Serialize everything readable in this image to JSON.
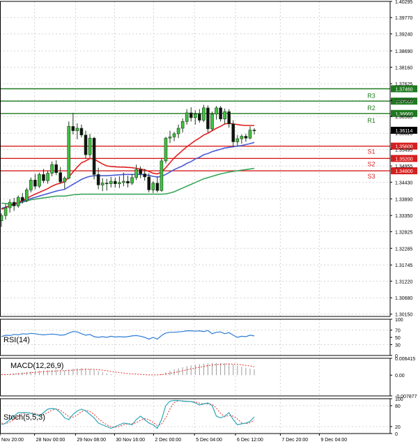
{
  "chart_data": [
    {
      "type": "candlestick",
      "title": "",
      "y_range": [
        1.30075,
        1.40295
      ],
      "y_ticks": [
        "1.40295",
        "1.39770",
        "1.39240",
        "1.38690",
        "1.38160",
        "1.37625",
        "1.37080",
        "1.36560",
        "1.36020",
        "1.35495",
        "1.34955",
        "1.34430",
        "1.33890",
        "1.33350",
        "1.32825",
        "1.32285",
        "1.31745",
        "1.31220",
        "1.30680",
        "1.30150"
      ],
      "x_labels": [
        "Nov 20:00",
        "28 Nov 00:00",
        "29 Nov 08:00",
        "30 Nov 16:00",
        "2 Dec 00:00",
        "5 Dec 04:00",
        "6 Dec 12:00",
        "7 Dec 20:00",
        "9 Dec 04:00"
      ],
      "x_label_positions": [
        0.0,
        0.085,
        0.19,
        0.29,
        0.39,
        0.495,
        0.6,
        0.715,
        0.815
      ],
      "current_price": "1.36114",
      "current_value": 1.36114,
      "levels": [
        {
          "label": "R3",
          "price": "1.37460",
          "value": 1.3746,
          "kind": "resistance"
        },
        {
          "label": "R2",
          "price": "1.37060",
          "value": 1.3706,
          "kind": "resistance"
        },
        {
          "label": "R1",
          "price": "1.36660",
          "value": 1.3666,
          "kind": "resistance"
        },
        {
          "label": "S1",
          "price": "1.35600",
          "value": 1.356,
          "kind": "support"
        },
        {
          "label": "S2",
          "price": "1.35200",
          "value": 1.352,
          "kind": "support"
        },
        {
          "label": "S3",
          "price": "1.34800",
          "value": 1.348,
          "kind": "support"
        }
      ],
      "candles": [
        [
          1.3318,
          1.3342,
          1.3298,
          1.3335
        ],
        [
          1.3335,
          1.3372,
          1.3322,
          1.336
        ],
        [
          1.336,
          1.3388,
          1.3344,
          1.3378
        ],
        [
          1.3378,
          1.3392,
          1.335,
          1.3366
        ],
        [
          1.3366,
          1.34,
          1.336,
          1.3394
        ],
        [
          1.3394,
          1.3408,
          1.3374,
          1.3383
        ],
        [
          1.3383,
          1.3425,
          1.3378,
          1.3418
        ],
        [
          1.3418,
          1.3458,
          1.341,
          1.345
        ],
        [
          1.345,
          1.347,
          1.342,
          1.343
        ],
        [
          1.343,
          1.3474,
          1.3424,
          1.3468
        ],
        [
          1.3468,
          1.3486,
          1.344,
          1.3448
        ],
        [
          1.3448,
          1.348,
          1.3438,
          1.3472
        ],
        [
          1.3472,
          1.351,
          1.3462,
          1.35
        ],
        [
          1.35,
          1.3514,
          1.3466,
          1.3474
        ],
        [
          1.3474,
          1.3492,
          1.3438,
          1.3444
        ],
        [
          1.3444,
          1.3462,
          1.3422,
          1.3456
        ],
        [
          1.3456,
          1.364,
          1.3452,
          1.3624
        ],
        [
          1.3624,
          1.3668,
          1.3598,
          1.361
        ],
        [
          1.361,
          1.3634,
          1.3582,
          1.3618
        ],
        [
          1.3618,
          1.363,
          1.3588,
          1.3596
        ],
        [
          1.3596,
          1.361,
          1.352,
          1.3532
        ],
        [
          1.3532,
          1.36,
          1.3522,
          1.3586
        ],
        [
          1.3586,
          1.359,
          1.3452,
          1.3468
        ],
        [
          1.3468,
          1.349,
          1.342,
          1.3434
        ],
        [
          1.3434,
          1.3456,
          1.3414,
          1.344
        ],
        [
          1.344,
          1.3454,
          1.3416,
          1.3438
        ],
        [
          1.3438,
          1.346,
          1.3426,
          1.3446
        ],
        [
          1.3446,
          1.3458,
          1.3426,
          1.3438
        ],
        [
          1.3438,
          1.3462,
          1.3424,
          1.3442
        ],
        [
          1.3442,
          1.3474,
          1.343,
          1.3446
        ],
        [
          1.3446,
          1.3464,
          1.3426,
          1.344
        ],
        [
          1.344,
          1.347,
          1.3434,
          1.3458
        ],
        [
          1.3458,
          1.35,
          1.345,
          1.3484
        ],
        [
          1.3484,
          1.3494,
          1.3456,
          1.347
        ],
        [
          1.347,
          1.3486,
          1.3448,
          1.346
        ],
        [
          1.346,
          1.3472,
          1.341,
          1.3418
        ],
        [
          1.3418,
          1.3446,
          1.3408,
          1.344
        ],
        [
          1.344,
          1.3462,
          1.341,
          1.3416
        ],
        [
          1.3416,
          1.3522,
          1.3412,
          1.3512
        ],
        [
          1.3512,
          1.359,
          1.3504,
          1.3586
        ],
        [
          1.3586,
          1.361,
          1.357,
          1.359
        ],
        [
          1.359,
          1.3606,
          1.3576,
          1.36
        ],
        [
          1.36,
          1.363,
          1.3586,
          1.3618
        ],
        [
          1.3618,
          1.365,
          1.3604,
          1.364
        ],
        [
          1.364,
          1.368,
          1.363,
          1.3668
        ],
        [
          1.3668,
          1.3686,
          1.364,
          1.3652
        ],
        [
          1.3652,
          1.3676,
          1.363,
          1.3664
        ],
        [
          1.3664,
          1.368,
          1.3636,
          1.3644
        ],
        [
          1.3644,
          1.3694,
          1.3638,
          1.3684
        ],
        [
          1.3684,
          1.3692,
          1.3604,
          1.3616
        ],
        [
          1.3616,
          1.3672,
          1.361,
          1.3664
        ],
        [
          1.3664,
          1.369,
          1.3646,
          1.3684
        ],
        [
          1.3684,
          1.369,
          1.364,
          1.3648
        ],
        [
          1.3648,
          1.3682,
          1.3632,
          1.3672
        ],
        [
          1.3672,
          1.368,
          1.362,
          1.3632
        ],
        [
          1.3632,
          1.3644,
          1.3556,
          1.3574
        ],
        [
          1.3574,
          1.3596,
          1.3558,
          1.3584
        ],
        [
          1.3584,
          1.3598,
          1.3568,
          1.3592
        ],
        [
          1.3592,
          1.36,
          1.3574,
          1.3586
        ],
        [
          1.3586,
          1.3624,
          1.3582,
          1.3612
        ],
        [
          1.3612,
          1.3618,
          1.3598,
          1.3611
        ]
      ],
      "ma_red": [
        1.3355,
        1.336,
        1.3368,
        1.3372,
        1.3378,
        1.3383,
        1.339,
        1.3398,
        1.3404,
        1.341,
        1.3416,
        1.3422,
        1.343,
        1.3436,
        1.344,
        1.3444,
        1.346,
        1.3476,
        1.3492,
        1.3506,
        1.3512,
        1.352,
        1.3518,
        1.351,
        1.3502,
        1.3496,
        1.3494,
        1.3493,
        1.3492,
        1.3492,
        1.3491,
        1.349,
        1.3488,
        1.3486,
        1.3483,
        1.3478,
        1.3472,
        1.347,
        1.3476,
        1.349,
        1.3506,
        1.3522,
        1.3534,
        1.3546,
        1.3558,
        1.3568,
        1.3578,
        1.3586,
        1.3596,
        1.3602,
        1.361,
        1.3618,
        1.3624,
        1.3632,
        1.3634,
        1.3632,
        1.363,
        1.3628,
        1.3627,
        1.3627,
        1.3627
      ],
      "ma_blue": [
        1.3358,
        1.3362,
        1.3366,
        1.337,
        1.3375,
        1.338,
        1.3385,
        1.339,
        1.3394,
        1.3398,
        1.3402,
        1.3406,
        1.341,
        1.3414,
        1.3417,
        1.342,
        1.3428,
        1.3436,
        1.3444,
        1.3452,
        1.3458,
        1.3462,
        1.3464,
        1.3464,
        1.3464,
        1.3464,
        1.3465,
        1.3466,
        1.3467,
        1.3468,
        1.3468,
        1.3468,
        1.3468,
        1.3468,
        1.3467,
        1.3465,
        1.3462,
        1.346,
        1.3462,
        1.3468,
        1.3476,
        1.3484,
        1.349,
        1.3496,
        1.3504,
        1.351,
        1.3518,
        1.3524,
        1.3532,
        1.3536,
        1.3542,
        1.3546,
        1.355,
        1.3554,
        1.3556,
        1.3558,
        1.356,
        1.3562,
        1.3565,
        1.3568,
        1.3572
      ],
      "ma_green": [
        1.3375,
        1.3374,
        1.3372,
        1.3372,
        1.3374,
        1.3378,
        1.3382,
        1.3386,
        1.3388,
        1.339,
        1.3392,
        1.3394,
        1.3396,
        1.3398,
        1.3398,
        1.3398,
        1.34,
        1.3402,
        1.3403,
        1.3404,
        1.3404,
        1.3404,
        1.3404,
        1.3404,
        1.3404,
        1.3404,
        1.3404,
        1.3404,
        1.3404,
        1.3404,
        1.3404,
        1.3404,
        1.3404,
        1.3404,
        1.3404,
        1.3404,
        1.3404,
        1.3404,
        1.3404,
        1.3405,
        1.3408,
        1.3412,
        1.3418,
        1.3424,
        1.343,
        1.3436,
        1.3442,
        1.3448,
        1.3454,
        1.3458,
        1.3462,
        1.3466,
        1.347,
        1.3473,
        1.3476,
        1.3478,
        1.348,
        1.3482,
        1.3484,
        1.3486,
        1.3488
      ]
    },
    {
      "type": "line",
      "title": "RSI(14)",
      "y_ticks": [
        "100",
        "70",
        "50",
        "30",
        "0"
      ],
      "values": [
        52,
        56,
        55,
        58,
        57,
        60,
        59,
        61,
        60,
        58,
        57,
        58,
        59,
        58,
        56,
        57,
        62,
        66,
        65,
        60,
        56,
        58,
        52,
        50,
        52,
        50,
        53,
        51,
        52,
        51,
        52,
        54,
        55,
        53,
        50,
        45,
        50,
        45,
        55,
        62,
        64,
        64,
        65,
        66,
        68,
        68,
        67,
        68,
        66,
        69,
        60,
        64,
        65,
        60,
        63,
        56,
        50,
        53,
        52,
        56,
        54
      ]
    },
    {
      "type": "bar",
      "title": "MACD(12,26,9)",
      "y_ticks": [
        "0.006415",
        "0.00",
        "-0.007877"
      ],
      "y_range": [
        -0.007877,
        0.006415
      ],
      "histogram": [
        0.0002,
        0.0003,
        0.0004,
        0.0006,
        0.0008,
        0.001,
        0.0012,
        0.0014,
        0.0016,
        0.0017,
        0.0018,
        0.0019,
        0.002,
        0.002,
        0.0019,
        0.0018,
        0.0021,
        0.0024,
        0.0026,
        0.0027,
        0.0026,
        0.0024,
        0.002,
        0.0015,
        0.0011,
        0.0007,
        0.0004,
        0.0002,
        0.0001,
        0.0,
        0.0,
        0.0,
        0.0,
        0.0,
        0.0,
        -0.0001,
        0.0,
        0.0001,
        0.0005,
        0.0011,
        0.0017,
        0.0022,
        0.0026,
        0.003,
        0.0034,
        0.0037,
        0.004,
        0.0042,
        0.0044,
        0.0045,
        0.0046,
        0.0046,
        0.0046,
        0.0045,
        0.0043,
        0.004,
        0.0036,
        0.0032,
        0.0028,
        0.0025,
        0.0022
      ],
      "signal": [
        0.0002,
        0.0002,
        0.0003,
        0.0004,
        0.0005,
        0.0006,
        0.0008,
        0.0009,
        0.0011,
        0.0012,
        0.0013,
        0.0014,
        0.0015,
        0.0016,
        0.0017,
        0.0017,
        0.0018,
        0.0019,
        0.002,
        0.0021,
        0.0022,
        0.0022,
        0.0022,
        0.0021,
        0.0019,
        0.0017,
        0.0014,
        0.0012,
        0.001,
        0.0008,
        0.0006,
        0.0005,
        0.0004,
        0.0003,
        0.0002,
        0.0001,
        0.0001,
        0.0001,
        0.0002,
        0.0004,
        0.0007,
        0.001,
        0.0013,
        0.0017,
        0.002,
        0.0024,
        0.0027,
        0.003,
        0.0033,
        0.0036,
        0.0038,
        0.004,
        0.0041,
        0.0042,
        0.0043,
        0.0042,
        0.0041,
        0.0039,
        0.0037,
        0.0035,
        0.0032
      ]
    },
    {
      "type": "line",
      "title": "Stoch(5,5,3)",
      "y_ticks": [
        "100",
        "80",
        "20",
        "0"
      ],
      "k": [
        25,
        30,
        40,
        50,
        60,
        60,
        60,
        58,
        55,
        50,
        60,
        70,
        72,
        70,
        60,
        45,
        40,
        55,
        65,
        70,
        65,
        55,
        45,
        30,
        25,
        20,
        15,
        20,
        25,
        30,
        28,
        25,
        40,
        50,
        40,
        30,
        25,
        15,
        40,
        80,
        93,
        95,
        95,
        93,
        92,
        92,
        88,
        82,
        85,
        88,
        80,
        50,
        45,
        50,
        60,
        40,
        25,
        28,
        30,
        35,
        48
      ],
      "d": [
        30,
        28,
        33,
        40,
        50,
        57,
        60,
        59,
        58,
        54,
        55,
        60,
        67,
        71,
        67,
        58,
        48,
        47,
        53,
        63,
        67,
        63,
        55,
        43,
        33,
        25,
        20,
        18,
        20,
        25,
        28,
        28,
        31,
        38,
        43,
        40,
        32,
        23,
        27,
        45,
        71,
        89,
        94,
        94,
        93,
        92,
        91,
        87,
        85,
        85,
        84,
        73,
        58,
        48,
        52,
        50,
        42,
        31,
        28,
        31,
        38
      ]
    }
  ]
}
